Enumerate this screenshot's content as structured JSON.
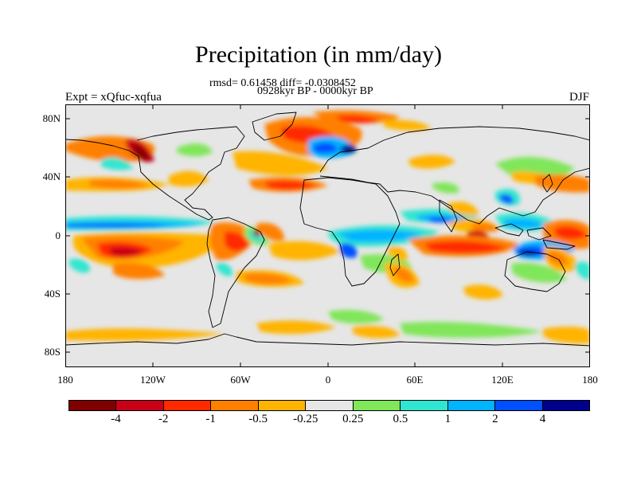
{
  "header": {
    "title": "Precipitation (in mm/day)",
    "stats": "rmsd= 0.61458 diff= -0.0308452",
    "period": "0928kyr BP - 0000kyr BP",
    "experiment": "Expt = xQfuc-xqfua",
    "season": "DJF"
  },
  "map": {
    "lat_ticks": [
      "80N",
      "40N",
      "0",
      "40S",
      "80S"
    ],
    "lon_ticks": [
      "180",
      "120W",
      "60W",
      "0",
      "60E",
      "120E",
      "180"
    ],
    "background_color": "#e6e6e6"
  },
  "colorbar": {
    "colors": [
      "#800000",
      "#c80018",
      "#ff2a00",
      "#ff8000",
      "#ffb400",
      "#e6e6e6",
      "#80e65a",
      "#30e6d0",
      "#00b4ff",
      "#0050ff",
      "#00008c"
    ],
    "labels": [
      "-4",
      "-2",
      "-1",
      "-0.5",
      "-0.25",
      "0.25",
      "0.5",
      "1",
      "2",
      "4"
    ]
  }
}
